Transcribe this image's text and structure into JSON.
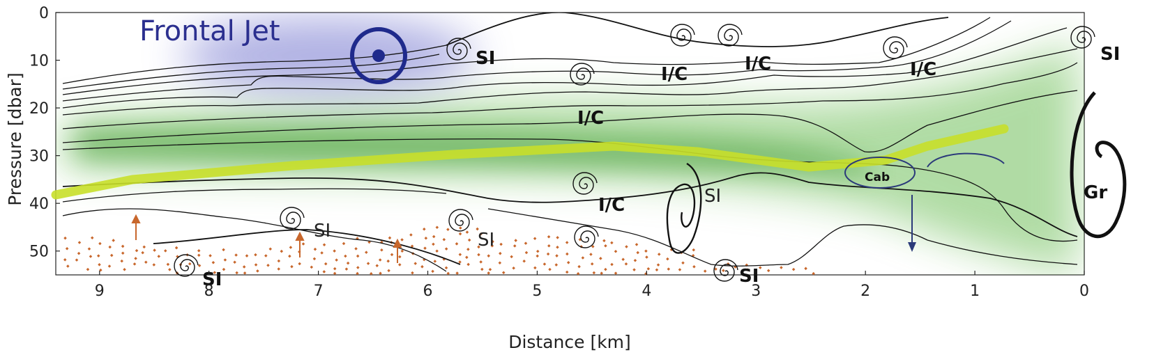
{
  "axes": {
    "x_label": "Distance [km]",
    "y_label": "Pressure [dbar]",
    "x_ticks": [
      "9",
      "8",
      "7",
      "6",
      "5",
      "4",
      "3",
      "2",
      "1",
      "0"
    ],
    "y_ticks": [
      "0",
      "10",
      "20",
      "30",
      "40",
      "50"
    ],
    "x_direction": "reversed",
    "x_range_km": [
      9.4,
      0
    ],
    "y_range_dbar": [
      0,
      55
    ]
  },
  "labels": {
    "frontal_jet": "Frontal Jet",
    "si": "SI",
    "ic": "I/C",
    "cab": "Cab",
    "gr": "Gr"
  },
  "colors": {
    "jet_shading": "#8f91d8",
    "jet_symbol": "#1f2a8c",
    "green_shading": "#6fbf5a",
    "mixed_layer_line": "#c8df2a",
    "orange_dots": "#c8672c",
    "cab_ellipse": "#2b3a7a",
    "isopycnals": "#111111"
  },
  "icons": [
    "out-of-page-jet-symbol",
    "spiral-eddy-icon",
    "upward-arrow-icon",
    "downward-arrow-icon"
  ]
}
